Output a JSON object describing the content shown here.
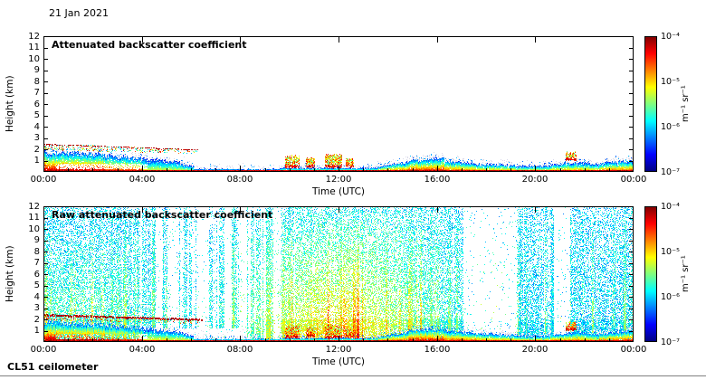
{
  "page": {
    "date": "21 Jan 2021",
    "footer": "CL51 ceilometer"
  },
  "colorbar": {
    "ticks": [
      "10⁻⁴",
      "10⁻⁵",
      "10⁻⁶",
      "10⁻⁷"
    ],
    "unit": "m⁻¹ sr⁻¹",
    "colormap": "jet",
    "scale": "log",
    "range": [
      "1e-7",
      "1e-4"
    ]
  },
  "chart_data": [
    {
      "type": "heatmap",
      "panel": "attenuated",
      "title": "Attenuated backscatter coefficient",
      "xlabel": "Time (UTC)",
      "ylabel": "Height (km)",
      "x_ticks": [
        "00:00",
        "04:00",
        "08:00",
        "12:00",
        "16:00",
        "20:00",
        "00:00"
      ],
      "y_ticks": [
        "1",
        "2",
        "3",
        "4",
        "5",
        "6",
        "7",
        "8",
        "9",
        "10",
        "11",
        "12"
      ],
      "xlim_hours": [
        0,
        24
      ],
      "ylim_km": [
        0,
        12
      ],
      "value_range": [
        "1e-7",
        "1e-4"
      ],
      "features": {
        "surface_line_top_km": 0.14,
        "clear_gap_below_layer": [
          0.5,
          4.2,
          0.18,
          0.7
        ],
        "bl_segments": [
          [
            0,
            1,
            1.7,
            1.6,
            1.0
          ],
          [
            1,
            2.5,
            1.6,
            1.45,
            1.0
          ],
          [
            2.5,
            4,
            1.45,
            1.15,
            0.85
          ],
          [
            4,
            5.3,
            1.15,
            0.95,
            0.45
          ],
          [
            5.3,
            6.1,
            0.95,
            0.45,
            0.45
          ],
          [
            6.1,
            9.6,
            0.22,
            0.22,
            0.4
          ],
          [
            9.6,
            12.8,
            0.3,
            0.3,
            0.55
          ],
          [
            12.8,
            13.6,
            0.28,
            0.35,
            0.5
          ],
          [
            13.6,
            14.8,
            0.4,
            0.85,
            0.8
          ],
          [
            14.8,
            16.3,
            0.95,
            1.15,
            0.9
          ],
          [
            16.3,
            17.6,
            0.95,
            0.7,
            0.8
          ],
          [
            17.6,
            19.2,
            0.7,
            0.55,
            0.7
          ],
          [
            19.2,
            20.6,
            0.5,
            0.5,
            0.6
          ],
          [
            20.6,
            21.9,
            0.6,
            0.85,
            0.7
          ],
          [
            21.9,
            22.6,
            0.8,
            0.6,
            0.65
          ],
          [
            22.6,
            24,
            0.7,
            0.95,
            0.8
          ]
        ],
        "elevated_layer": {
          "hours": [
            0,
            6.3
          ],
          "base_km": [
            1.9,
            1.6
          ],
          "top_km": [
            2.45,
            1.95
          ],
          "density": 0.3
        },
        "clouds": [
          [
            9.85,
            10.45,
            0.35,
            1.35
          ],
          [
            10.7,
            11.05,
            0.4,
            1.2
          ],
          [
            11.45,
            12.15,
            0.35,
            1.45
          ],
          [
            12.3,
            12.65,
            0.4,
            1.1
          ],
          [
            21.25,
            21.7,
            1.0,
            1.7
          ]
        ]
      }
    },
    {
      "type": "heatmap",
      "panel": "raw",
      "title": "Raw attenuated backscatter coefficient",
      "xlabel": "Time (UTC)",
      "ylabel": "Height (km)",
      "x_ticks": [
        "00:00",
        "04:00",
        "08:00",
        "12:00",
        "16:00",
        "20:00",
        "00:00"
      ],
      "y_ticks": [
        "1",
        "2",
        "3",
        "4",
        "5",
        "6",
        "7",
        "8",
        "9",
        "10",
        "11",
        "12"
      ],
      "xlim_hours": [
        0,
        24
      ],
      "ylim_km": [
        0,
        12
      ],
      "value_range": [
        "1e-7",
        "1e-4"
      ],
      "features": {
        "noise": {
          "base_density": 0.5,
          "height_falloff": 0.42,
          "base_value": 0.34,
          "value_jitter": 0.2,
          "low_altitude_densify_km": 2,
          "day_boost": {
            "center_hour": 12,
            "sigma_hours": 2.6,
            "amplitude": 0.32
          },
          "early_boost": {
            "center_hour": 1.5,
            "sigma_hours": 1.8,
            "amplitude": 0.12
          }
        },
        "gaps": [
          [
            4.55,
            4.8
          ],
          [
            5.2,
            5.4
          ],
          [
            6.3,
            6.7
          ],
          [
            7.35,
            7.65
          ],
          [
            8.05,
            8.25
          ],
          [
            17.05,
            19.25
          ],
          [
            20.75,
            21.4
          ]
        ],
        "gap_residual_density": 0.06,
        "striped_white_region_hours": [
          3.8,
          9.6
        ],
        "white_low_region": [
          3.9,
          8.3,
          0,
          1.15
        ],
        "descending_red_line": {
          "hours": [
            0,
            6.5
          ],
          "km": [
            2.35,
            1.95
          ]
        }
      }
    }
  ]
}
